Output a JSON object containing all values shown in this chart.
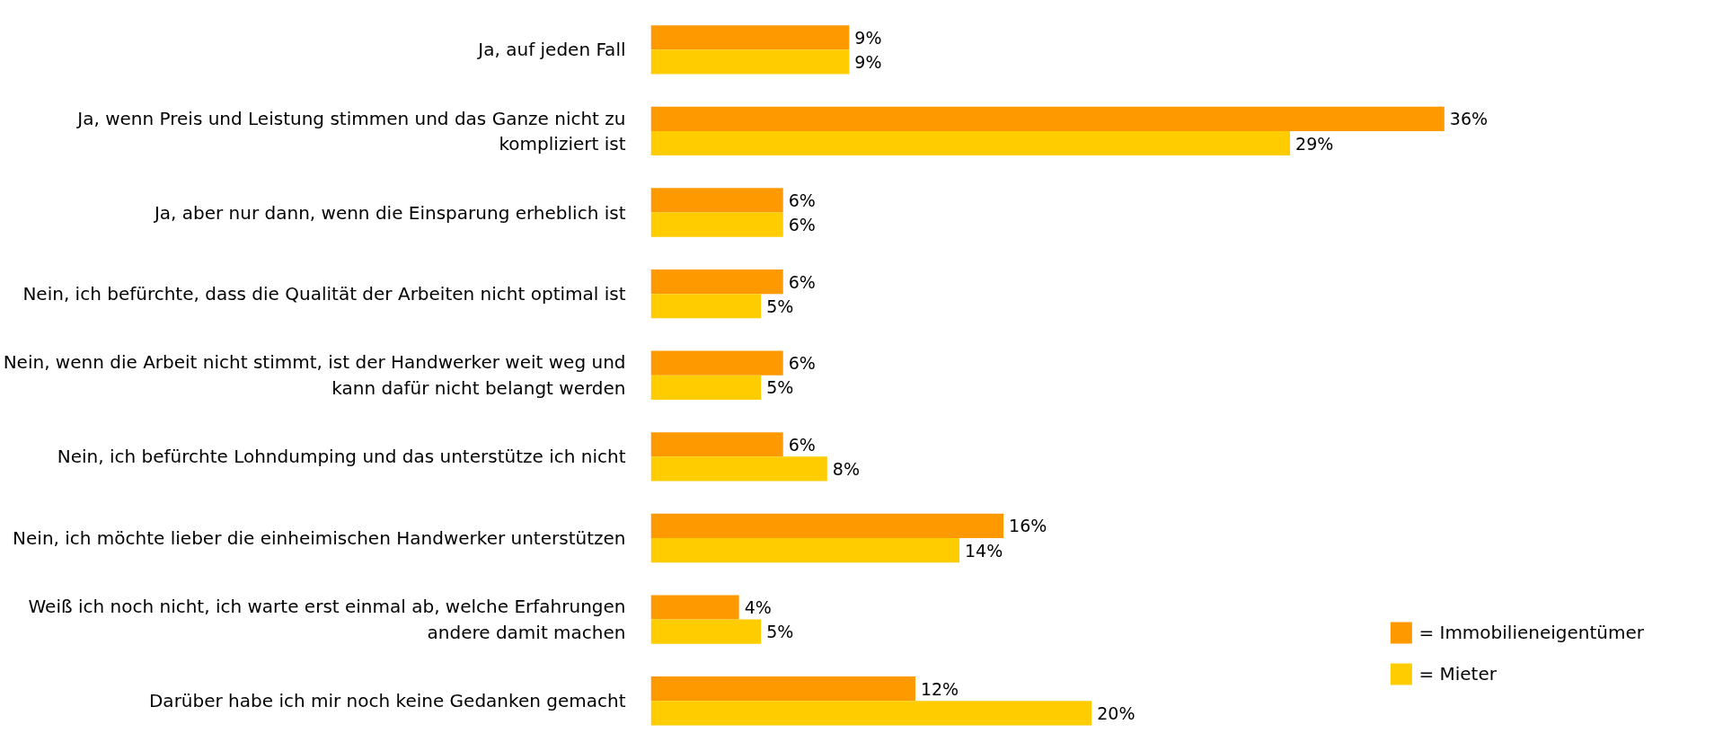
{
  "chart_data": {
    "type": "bar",
    "orientation": "horizontal",
    "categories": [
      "Ja, auf jeden Fall",
      "Ja, wenn Preis und Leistung stimmen und das Ganze nicht zu kompliziert ist",
      "Ja, aber nur dann, wenn die Einsparung erheblich ist",
      "Nein, ich befürchte, dass die Qualität der Arbeiten nicht optimal ist",
      "Nein, wenn die Arbeit nicht stimmt, ist der Handwerker weit weg und kann dafür nicht belangt werden",
      "Nein, ich befürchte Lohndumping und das unterstütze ich nicht",
      "Nein, ich möchte lieber die einheimischen Handwerker unterstützen",
      "Weiß ich noch nicht, ich warte erst einmal ab, welche Erfahrungen andere damit machen",
      "Darüber habe ich mir noch keine Gedanken gemacht"
    ],
    "series": [
      {
        "name": "= Immobilieneigentümer",
        "color": "#ff9900",
        "values": [
          9,
          36,
          6,
          6,
          6,
          6,
          16,
          4,
          12
        ],
        "value_labels": [
          "9%",
          "36%",
          "6%",
          "6%",
          "6%",
          "6%",
          "16%",
          "4%",
          "12%"
        ]
      },
      {
        "name": "= Mieter",
        "color": "#ffcc00",
        "values": [
          9,
          29,
          6,
          5,
          5,
          8,
          14,
          5,
          20
        ],
        "value_labels": [
          "9%",
          "29%",
          "6%",
          "5%",
          "5%",
          "8%",
          "14%",
          "5%",
          "20%"
        ]
      }
    ],
    "legend": "bottom right",
    "grid": false
  }
}
